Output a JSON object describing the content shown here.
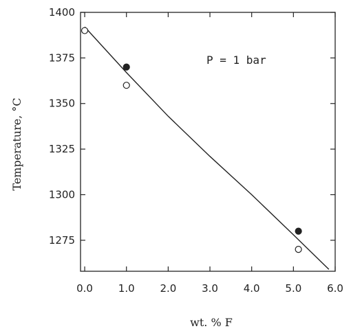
{
  "chart_data": {
    "type": "scatter",
    "xlabel": "wt. % F",
    "ylabel": "Temperature, °C",
    "annotation": "P = 1 bar",
    "xlim": [
      -0.1,
      6.0
    ],
    "ylim": [
      1258,
      1400
    ],
    "x_ticks": [
      "0.0",
      "1.0",
      "2.0",
      "3.0",
      "4.0",
      "5.0",
      "6.0"
    ],
    "x_tick_values": [
      0,
      1,
      2,
      3,
      4,
      5,
      6
    ],
    "y_ticks": [
      "1400",
      "1375",
      "1350",
      "1325",
      "1300",
      "1275"
    ],
    "y_tick_values": [
      1400,
      1375,
      1350,
      1325,
      1300,
      1275
    ],
    "series": [
      {
        "marker": "filled-circle",
        "x": [
          1.0,
          5.12
        ],
        "y": [
          1370,
          1280
        ]
      },
      {
        "marker": "open-circle",
        "x": [
          0.0,
          1.0,
          5.12
        ],
        "y": [
          1390,
          1360,
          1270
        ]
      }
    ],
    "fit_line": {
      "x": [
        0.0,
        1.0,
        2.0,
        3.0,
        4.0,
        5.0,
        5.85
      ],
      "y": [
        1392,
        1367,
        1343,
        1321,
        1300,
        1278,
        1259
      ]
    },
    "grid": false,
    "legend": "none"
  }
}
